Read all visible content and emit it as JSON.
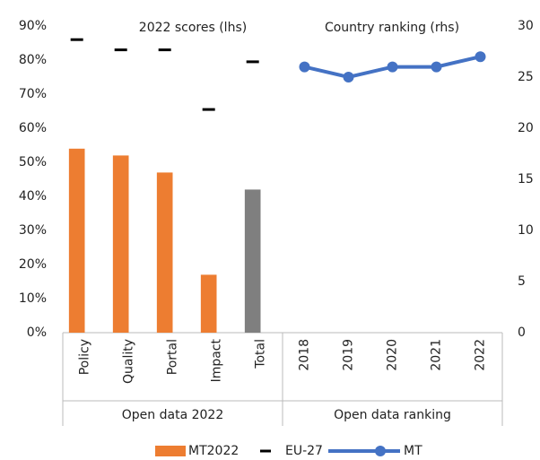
{
  "chart_data": {
    "type": "bar-line",
    "subtitles": [
      "2022 scores (lhs)",
      "Country ranking (rhs)"
    ],
    "categories": [
      "Policy",
      "Quality",
      "Portal",
      "Impact",
      "Total",
      "2018",
      "2019",
      "2020",
      "2021",
      "2022"
    ],
    "groups": [
      "Open data 2022",
      "Open data ranking"
    ],
    "series": [
      {
        "name": "MT2022",
        "kind": "bar",
        "color": "#ed7d31",
        "colors": [
          "#ed7d31",
          "#ed7d31",
          "#ed7d31",
          "#ed7d31",
          "#7f7f7f",
          null,
          null,
          null,
          null,
          null
        ],
        "values": [
          54,
          52,
          47,
          17,
          42,
          null,
          null,
          null,
          null,
          null
        ]
      },
      {
        "name": "EU-27",
        "kind": "dash",
        "color": "#000000",
        "values": [
          86,
          83,
          83,
          65.5,
          79.5,
          null,
          null,
          null,
          null,
          null
        ]
      },
      {
        "name": "MT",
        "kind": "line",
        "axis": "y2",
        "color": "#4472c4",
        "values": [
          null,
          null,
          null,
          null,
          null,
          26,
          25,
          26,
          26,
          27
        ]
      }
    ],
    "ylim": [
      0,
      90
    ],
    "yticks": [
      {
        "value": 0,
        "label": "0%"
      },
      {
        "value": 10,
        "label": "10%"
      },
      {
        "value": 20,
        "label": "20%"
      },
      {
        "value": 30,
        "label": "30%"
      },
      {
        "value": 40,
        "label": "40%"
      },
      {
        "value": 50,
        "label": "50%"
      },
      {
        "value": 60,
        "label": "60%"
      },
      {
        "value": 70,
        "label": "70%"
      },
      {
        "value": 80,
        "label": "80%"
      },
      {
        "value": 90,
        "label": "90%"
      }
    ],
    "y2lim": [
      0,
      30
    ],
    "y2ticks": [
      0,
      5,
      10,
      15,
      20,
      25,
      30
    ],
    "grid": false,
    "legend": "bottom"
  }
}
